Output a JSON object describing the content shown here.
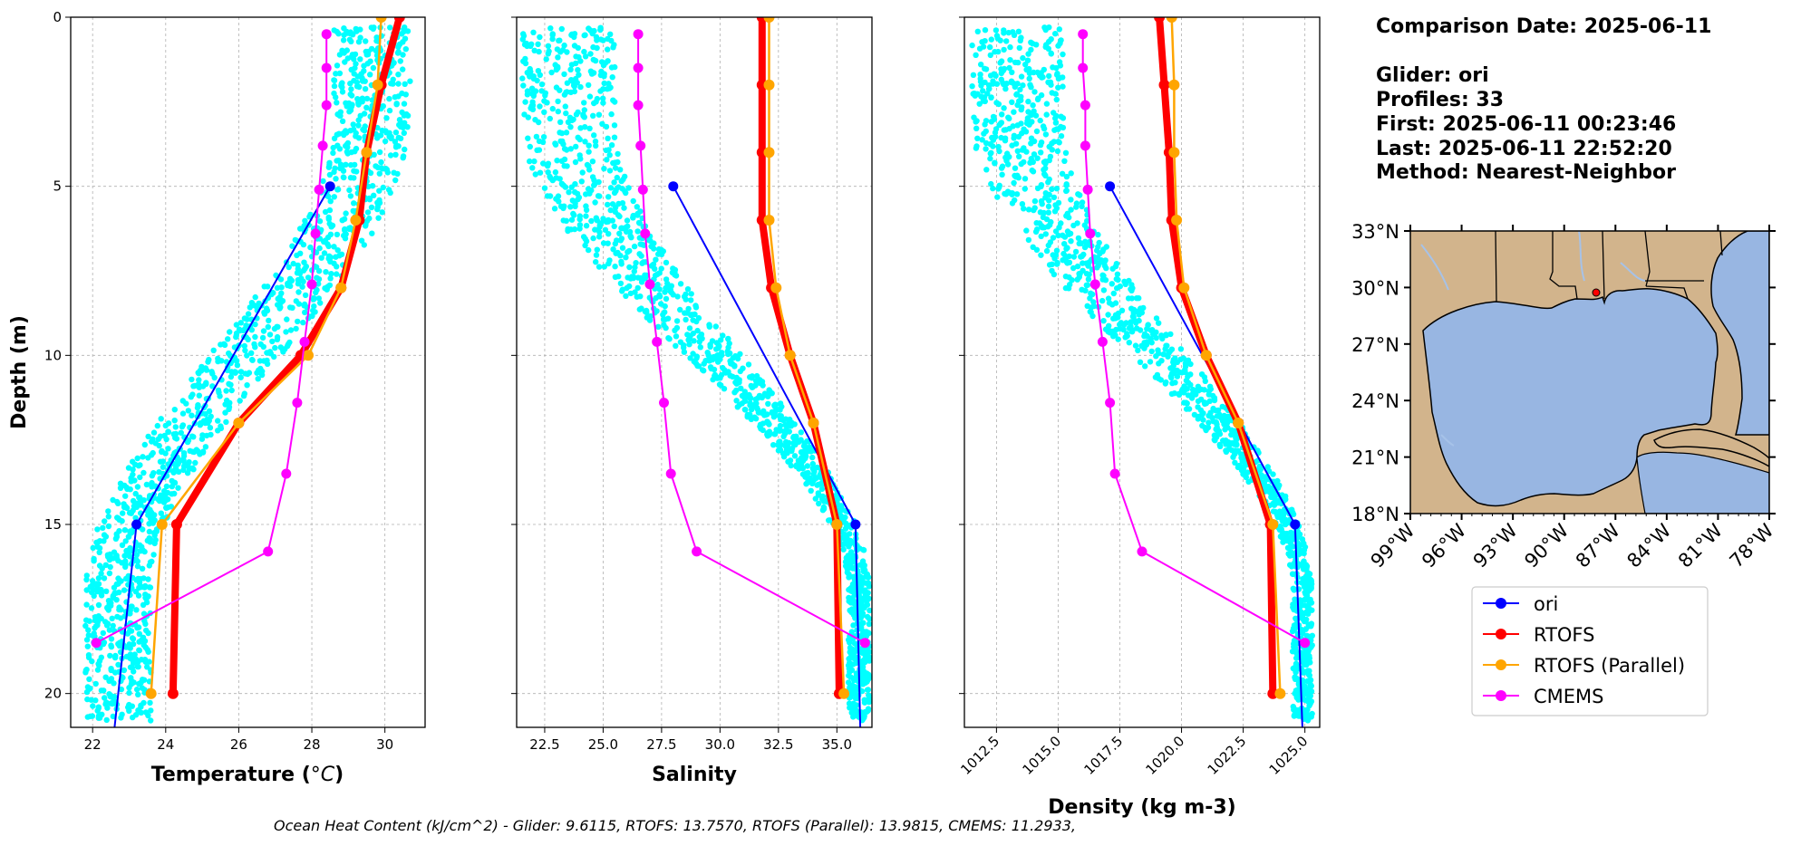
{
  "chart_data": [
    {
      "type": "line",
      "xlabel": "Temperature (°C)",
      "ylabel": "Depth (m)",
      "xlim": [
        21.4,
        31.1
      ],
      "ylim": [
        21,
        0
      ],
      "xticks": [
        22,
        24,
        26,
        28,
        30
      ],
      "yticks": [
        0,
        5,
        10,
        15,
        20
      ],
      "grid": true,
      "scatter": {
        "color": "#00ffff",
        "depth_range": [
          0.3,
          20.8
        ],
        "surface_min": 28.6,
        "surface_max": 30.7,
        "bottom_min": 21.8,
        "bottom_max": 23.6
      },
      "series": [
        {
          "name": "ori",
          "color": "#0000ff",
          "marker_depths": [
            5,
            15
          ],
          "depths": [
            5,
            15,
            21
          ],
          "values": [
            28.5,
            23.2,
            22.6
          ]
        },
        {
          "name": "RTOFS",
          "color": "#ff0000",
          "depths": [
            0,
            2,
            4,
            6,
            8,
            10,
            12,
            15,
            20
          ],
          "values": [
            30.4,
            29.9,
            29.5,
            29.3,
            28.8,
            27.7,
            26.0,
            24.3,
            24.2
          ]
        },
        {
          "name": "RTOFS (Parallel)",
          "color": "#ffa500",
          "depths": [
            0,
            2,
            4,
            6,
            8,
            10,
            12,
            15,
            20
          ],
          "values": [
            29.9,
            29.8,
            29.5,
            29.2,
            28.8,
            27.9,
            26.0,
            23.9,
            23.6
          ]
        },
        {
          "name": "CMEMS",
          "color": "#ff00ff",
          "depths": [
            0.5,
            1.5,
            2.6,
            3.8,
            5.1,
            6.4,
            7.9,
            9.6,
            11.4,
            13.5,
            15.8,
            18.5
          ],
          "values": [
            28.4,
            28.4,
            28.4,
            28.3,
            28.2,
            28.1,
            28.0,
            27.8,
            27.6,
            27.3,
            26.8,
            22.1
          ]
        }
      ]
    },
    {
      "type": "line",
      "xlabel": "Salinity",
      "xlim": [
        21.3,
        36.5
      ],
      "ylim": [
        21,
        0
      ],
      "xticks": [
        "22.5",
        "25.0",
        "27.5",
        "30.0",
        "32.5",
        "35.0"
      ],
      "grid": true,
      "scatter": {
        "color": "#00ffff",
        "depth_range": [
          0.3,
          20.8
        ],
        "surface_min": 21.5,
        "surface_max": 25.5,
        "bottom_min": 35.5,
        "bottom_max": 36.4
      },
      "series": [
        {
          "name": "ori",
          "color": "#0000ff",
          "marker_depths": [
            5,
            15
          ],
          "depths": [
            5,
            15,
            21
          ],
          "values": [
            28.0,
            35.8,
            36.0
          ]
        },
        {
          "name": "RTOFS",
          "color": "#ff0000",
          "depths": [
            0,
            2,
            4,
            6,
            8,
            10,
            12,
            15,
            20
          ],
          "values": [
            31.8,
            31.8,
            31.8,
            31.8,
            32.2,
            33.0,
            34.0,
            35.0,
            35.1
          ]
        },
        {
          "name": "RTOFS (Parallel)",
          "color": "#ffa500",
          "depths": [
            0,
            2,
            4,
            6,
            8,
            10,
            12,
            15,
            20
          ],
          "values": [
            32.1,
            32.1,
            32.1,
            32.1,
            32.4,
            33.0,
            34.0,
            35.0,
            35.3
          ]
        },
        {
          "name": "CMEMS",
          "color": "#ff00ff",
          "depths": [
            0.5,
            1.5,
            2.6,
            3.8,
            5.1,
            6.4,
            7.9,
            9.6,
            11.4,
            13.5,
            15.8,
            18.5
          ],
          "values": [
            26.5,
            26.5,
            26.5,
            26.6,
            26.7,
            26.8,
            27.0,
            27.3,
            27.6,
            27.9,
            29.0,
            36.2
          ]
        }
      ]
    },
    {
      "type": "line",
      "xlabel": "Density (kg m-3)",
      "xlim": [
        1011.2,
        1025.6
      ],
      "ylim": [
        21,
        0
      ],
      "xticks": [
        "1012.5",
        "1015.0",
        "1017.5",
        "1020.0",
        "1022.5",
        "1025.0"
      ],
      "grid": true,
      "scatter": {
        "color": "#00ffff",
        "depth_range": [
          0.3,
          20.8
        ],
        "surface_min": 1011.5,
        "surface_max": 1015.2,
        "bottom_min": 1024.5,
        "bottom_max": 1025.3
      },
      "series": [
        {
          "name": "ori",
          "color": "#0000ff",
          "marker_depths": [
            5,
            15
          ],
          "depths": [
            5,
            15,
            21
          ],
          "values": [
            1017.1,
            1024.6,
            1024.9
          ]
        },
        {
          "name": "RTOFS",
          "color": "#ff0000",
          "depths": [
            0,
            2,
            4,
            6,
            8,
            10,
            12,
            15,
            20
          ],
          "values": [
            1019.1,
            1019.3,
            1019.5,
            1019.6,
            1020.0,
            1021.0,
            1022.3,
            1023.6,
            1023.7
          ]
        },
        {
          "name": "RTOFS (Parallel)",
          "color": "#ffa500",
          "depths": [
            0,
            2,
            4,
            6,
            8,
            10,
            12,
            15,
            20
          ],
          "values": [
            1019.6,
            1019.7,
            1019.7,
            1019.8,
            1020.1,
            1021.0,
            1022.3,
            1023.7,
            1024.0
          ]
        },
        {
          "name": "CMEMS",
          "color": "#ff00ff",
          "depths": [
            0.5,
            1.5,
            2.6,
            3.8,
            5.1,
            6.4,
            7.9,
            9.6,
            11.4,
            13.5,
            15.8,
            18.5
          ],
          "values": [
            1016.0,
            1016.0,
            1016.1,
            1016.1,
            1016.2,
            1016.3,
            1016.5,
            1016.8,
            1017.1,
            1017.3,
            1018.4,
            1025.0
          ]
        }
      ]
    }
  ],
  "info": {
    "line1": "Comparison Date: 2025-06-11",
    "line2": "Glider: ori",
    "line3": "Profiles: 33",
    "line4": "First: 2025-06-11 00:23:46",
    "line5": "Last: 2025-06-11 22:52:20",
    "line6": "Method: Nearest-Neighbor"
  },
  "map": {
    "lat_labels": [
      "33°N",
      "30°N",
      "27°N",
      "24°N",
      "21°N",
      "18°N"
    ],
    "lon_labels": [
      "99°W",
      "96°W",
      "93°W",
      "90°W",
      "87°W",
      "84°W",
      "81°W",
      "78°W"
    ],
    "land_color": "#d2b48c",
    "water_color": "#98b6e2",
    "glider_marker_color": "#ff0000",
    "glider_position": {
      "lat": 30.1,
      "lon": -88.3
    }
  },
  "legend": {
    "entries": [
      {
        "label": "ori",
        "color": "#0000ff"
      },
      {
        "label": "RTOFS",
        "color": "#ff0000"
      },
      {
        "label": "RTOFS (Parallel)",
        "color": "#ffa500"
      },
      {
        "label": "CMEMS",
        "color": "#ff00ff"
      }
    ]
  },
  "footer": {
    "text": "Ocean Heat Content (kJ/cm^2) - Glider: 9.6115,  RTOFS: 13.7570,  RTOFS (Parallel): 13.9815,  CMEMS: 11.2933,"
  }
}
